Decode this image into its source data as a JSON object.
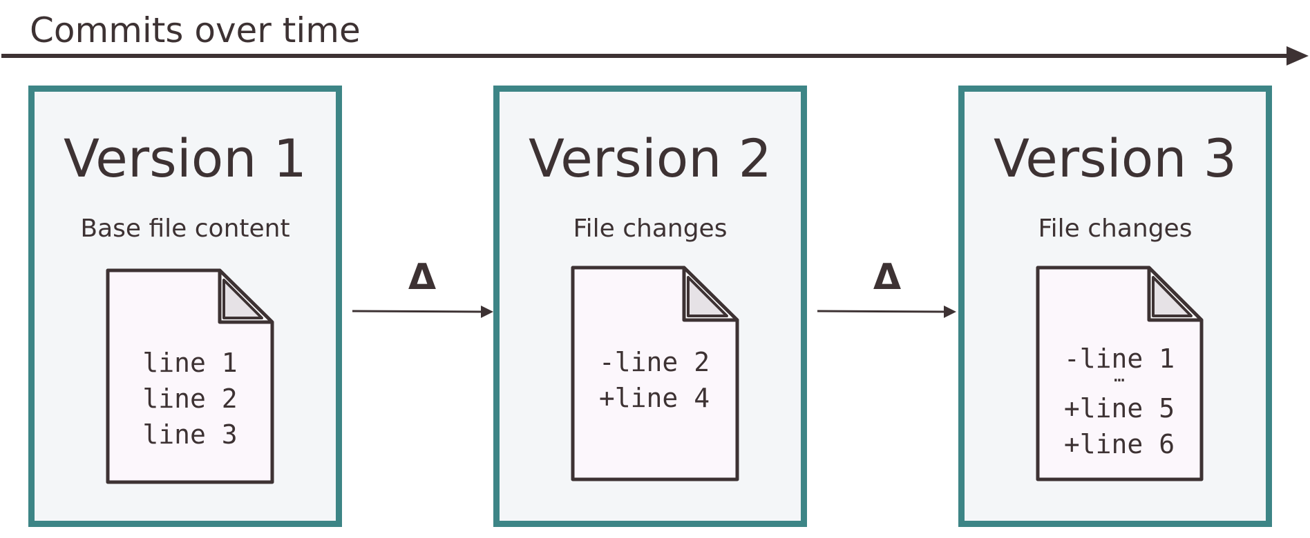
{
  "timeline": {
    "label": "Commits over time"
  },
  "versions": [
    {
      "title": "Version 1",
      "subtitle": "Base file content",
      "lines": [
        "line 1",
        "line 2",
        "line 3"
      ]
    },
    {
      "title": "Version 2",
      "subtitle": "File changes",
      "lines": [
        "-line 2",
        "+line 4"
      ]
    },
    {
      "title": "Version 3",
      "subtitle": "File changes",
      "lines": [
        "-line 1",
        "…",
        "+line 5",
        "+line 6"
      ]
    }
  ],
  "deltas": [
    "Δ",
    "Δ"
  ],
  "colors": {
    "box_border": "#3d8586",
    "box_fill": "#f4f6f8",
    "file_fill": "#fcf7fc",
    "ink": "#3d3233"
  }
}
